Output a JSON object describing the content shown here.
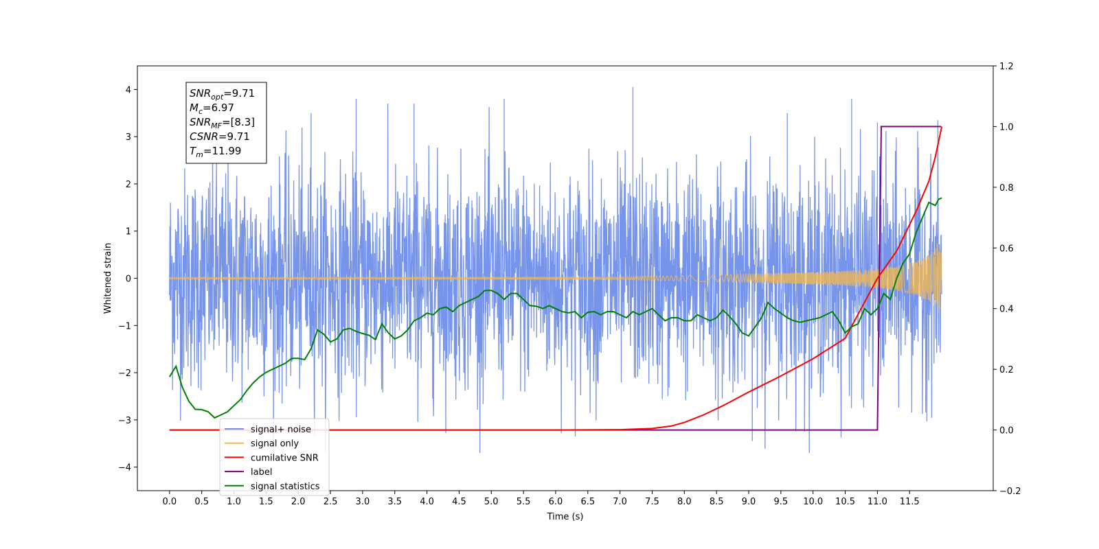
{
  "chart_data": {
    "type": "line",
    "xlabel": "Time (s)",
    "ylabel": "Whitened strain",
    "xlim": [
      -0.5,
      12.8
    ],
    "ylim_left": [
      -4.5,
      4.5
    ],
    "ylim_right": [
      -0.2,
      1.2
    ],
    "x_ticks": [
      "0.0",
      "0.5",
      "1.0",
      "1.5",
      "2.0",
      "2.5",
      "3.0",
      "3.5",
      "4.0",
      "4.5",
      "5.0",
      "5.5",
      "6.0",
      "6.5",
      "7.0",
      "7.5",
      "8.0",
      "8.5",
      "9.0",
      "9.5",
      "10.0",
      "10.5",
      "11.0",
      "11.5"
    ],
    "y_ticks_left": [
      "−4",
      "−3",
      "−2",
      "−1",
      "0",
      "1",
      "2",
      "3",
      "4"
    ],
    "y_ticks_right": [
      "−0.2",
      "0.0",
      "0.2",
      "0.4",
      "0.6",
      "0.8",
      "1.0",
      "1.2"
    ],
    "grid": false,
    "legend_position": "lower-left",
    "annotation": {
      "lines": [
        {
          "main": "SNR",
          "sub": "opt",
          "value": "=9.71"
        },
        {
          "main": "M",
          "sub": "c",
          "value": "=6.97"
        },
        {
          "main": "SNR",
          "sub": "MF",
          "value": "=[8.3]"
        },
        {
          "main": "CSNR",
          "sub": "",
          "value": "=9.71"
        },
        {
          "main": "T",
          "sub": "m",
          "value": "=11.99"
        }
      ]
    },
    "series": [
      {
        "name": "signal+ noise",
        "color": "#6f8ee8",
        "axis": "left",
        "envelope_x": [
          0,
          12
        ],
        "envelope_y": [
          -3.7,
          3.7
        ],
        "note_peaks_x": [
          2.2,
          2.9,
          3.8,
          5.2,
          7.2,
          9.6,
          10.6,
          11.0
        ],
        "note_peaks_y": [
          3.5,
          3.8,
          3.7,
          3.8,
          4.05,
          3.5,
          3.8,
          3.3
        ]
      },
      {
        "name": "signal only",
        "color": "#f5b94a",
        "axis": "left",
        "x": [
          0,
          5,
          7,
          8,
          9,
          10,
          10.5,
          11,
          11.3,
          11.6,
          11.8,
          11.9,
          11.95,
          12.0
        ],
        "amplitude": [
          0.01,
          0.015,
          0.03,
          0.06,
          0.09,
          0.13,
          0.16,
          0.2,
          0.26,
          0.36,
          0.48,
          0.62,
          0.8,
          0.5
        ]
      },
      {
        "name": "cumilative SNR",
        "color": "#ff0000",
        "axis": "right",
        "x": [
          0,
          6,
          7,
          7.5,
          7.8,
          8.0,
          8.3,
          8.6,
          9.0,
          9.5,
          10.0,
          10.5,
          11.0,
          11.3,
          11.6,
          11.8,
          11.9,
          12.0
        ],
        "y": [
          0,
          0,
          0.001,
          0.005,
          0.013,
          0.025,
          0.05,
          0.08,
          0.125,
          0.178,
          0.235,
          0.302,
          0.5,
          0.59,
          0.72,
          0.82,
          0.9,
          1.0
        ]
      },
      {
        "name": "label",
        "color": "#800080",
        "axis": "right",
        "x": [
          0,
          11.0,
          11.06,
          11.99
        ],
        "y": [
          0,
          0,
          1,
          1
        ]
      },
      {
        "name": "signal statistics",
        "color": "#008000",
        "axis": "right",
        "x": [
          0,
          0.1,
          0.2,
          0.3,
          0.4,
          0.5,
          0.6,
          0.7,
          0.8,
          0.9,
          1.0,
          1.1,
          1.2,
          1.3,
          1.4,
          1.5,
          1.6,
          1.7,
          1.8,
          1.9,
          2.0,
          2.1,
          2.2,
          2.3,
          2.4,
          2.5,
          2.6,
          2.7,
          2.8,
          2.9,
          3.0,
          3.1,
          3.2,
          3.3,
          3.4,
          3.5,
          3.6,
          3.7,
          3.8,
          3.9,
          4.0,
          4.1,
          4.2,
          4.3,
          4.4,
          4.5,
          4.6,
          4.7,
          4.8,
          4.9,
          5.0,
          5.1,
          5.2,
          5.3,
          5.4,
          5.5,
          5.6,
          5.7,
          5.8,
          5.9,
          6.0,
          6.1,
          6.2,
          6.3,
          6.4,
          6.5,
          6.6,
          6.7,
          6.8,
          6.9,
          7.0,
          7.1,
          7.2,
          7.3,
          7.4,
          7.5,
          7.6,
          7.7,
          7.8,
          7.9,
          8.0,
          8.1,
          8.2,
          8.3,
          8.4,
          8.5,
          8.6,
          8.7,
          8.8,
          8.9,
          9.0,
          9.1,
          9.2,
          9.3,
          9.4,
          9.5,
          9.6,
          9.7,
          9.8,
          9.9,
          10.0,
          10.1,
          10.2,
          10.3,
          10.4,
          10.5,
          10.6,
          10.7,
          10.8,
          10.9,
          11.0,
          11.1,
          11.2,
          11.3,
          11.4,
          11.5,
          11.6,
          11.7,
          11.8,
          11.9,
          11.95,
          12.0
        ],
        "y": [
          0.175,
          0.21,
          0.14,
          0.095,
          0.068,
          0.067,
          0.06,
          0.04,
          0.05,
          0.06,
          0.08,
          0.1,
          0.13,
          0.155,
          0.175,
          0.19,
          0.2,
          0.21,
          0.22,
          0.236,
          0.236,
          0.232,
          0.268,
          0.33,
          0.315,
          0.29,
          0.3,
          0.33,
          0.335,
          0.325,
          0.318,
          0.312,
          0.298,
          0.35,
          0.32,
          0.3,
          0.31,
          0.33,
          0.36,
          0.37,
          0.385,
          0.38,
          0.4,
          0.405,
          0.39,
          0.41,
          0.42,
          0.43,
          0.44,
          0.46,
          0.46,
          0.45,
          0.43,
          0.45,
          0.45,
          0.43,
          0.41,
          0.408,
          0.4,
          0.41,
          0.4,
          0.39,
          0.386,
          0.39,
          0.37,
          0.388,
          0.39,
          0.38,
          0.39,
          0.39,
          0.38,
          0.37,
          0.39,
          0.38,
          0.39,
          0.4,
          0.38,
          0.36,
          0.37,
          0.37,
          0.36,
          0.36,
          0.38,
          0.37,
          0.36,
          0.37,
          0.395,
          0.375,
          0.35,
          0.32,
          0.31,
          0.34,
          0.37,
          0.42,
          0.4,
          0.385,
          0.37,
          0.36,
          0.355,
          0.36,
          0.365,
          0.37,
          0.38,
          0.39,
          0.36,
          0.32,
          0.34,
          0.35,
          0.4,
          0.38,
          0.4,
          0.45,
          0.43,
          0.5,
          0.55,
          0.58,
          0.65,
          0.7,
          0.75,
          0.74,
          0.76,
          0.765
        ]
      }
    ]
  }
}
